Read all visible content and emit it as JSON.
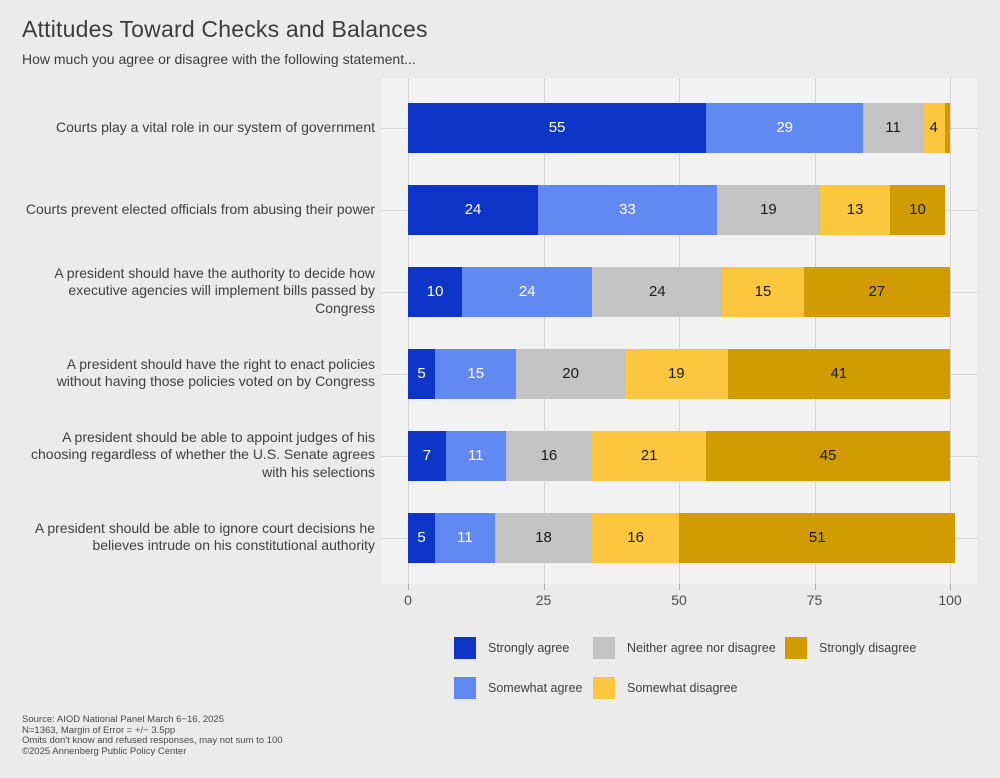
{
  "title": "Attitudes Toward Checks and Balances",
  "subtitle": "How much you agree or disagree with the following statement...",
  "colors": {
    "page_background": "#EBEBEB",
    "panel_background": "#F2F2F2",
    "gridline": "#D6D6D6",
    "strongly_agree": "#0D36C9",
    "somewhat_agree": "#6289F2",
    "neither": "#C3C3C3",
    "somewhat_disagree": "#FCC63F",
    "strongly_disagree": "#D09B03",
    "label_on_blue": "#FFFFFF",
    "label_on_light": "#1A1A1A"
  },
  "chart_data": {
    "type": "bar",
    "orientation": "horizontal",
    "stacked": true,
    "title": "Attitudes Toward Checks and Balances",
    "subtitle": "How much you agree or disagree with the following statement...",
    "xlim": [
      0,
      100
    ],
    "x_ticks": [
      0,
      25,
      50,
      75,
      100
    ],
    "grid": true,
    "legend_position": "bottom",
    "value_label_min": 3,
    "categories": [
      "Courts play a vital role in our system of government",
      "Courts prevent elected officials from abusing their power",
      "A president should have the authority to decide how executive agencies will implement bills passed by Congress",
      "A president should have the right to enact policies without having those policies voted on by Congress",
      "A president should be able to appoint judges of his choosing regardless of whether the U.S. Senate agrees with his selections",
      "A president should be able to ignore court decisions he believes intrude on his constitutional authority"
    ],
    "series": [
      {
        "name": "Strongly agree",
        "color": "#0D36C9",
        "label_color": "#FFFFFF",
        "values": [
          55,
          24,
          10,
          5,
          7,
          5
        ]
      },
      {
        "name": "Somewhat agree",
        "color": "#6289F2",
        "label_color": "#FFFFFF",
        "values": [
          29,
          33,
          24,
          15,
          11,
          11
        ]
      },
      {
        "name": "Neither agree nor disagree",
        "color": "#C3C3C3",
        "label_color": "#1A1A1A",
        "values": [
          11,
          19,
          24,
          20,
          16,
          18
        ]
      },
      {
        "name": "Somewhat disagree",
        "color": "#FCC63F",
        "label_color": "#1A1A1A",
        "values": [
          4,
          13,
          15,
          19,
          21,
          16
        ]
      },
      {
        "name": "Strongly disagree",
        "color": "#D09B03",
        "label_color": "#1A1A1A",
        "values": [
          1,
          10,
          27,
          41,
          45,
          51
        ]
      }
    ]
  },
  "legend": {
    "items": [
      "Strongly agree",
      "Somewhat agree",
      "Neither agree nor disagree",
      "Somewhat disagree",
      "Strongly disagree"
    ]
  },
  "footer": {
    "lines": [
      "Source: AIOD National Panel March 6−16, 2025",
      "N=1363, Margin of Error = +/− 3.5pp",
      "Omits don't know and refused responses, may not sum to 100",
      "©2025 Annenberg Public Policy Center"
    ]
  }
}
